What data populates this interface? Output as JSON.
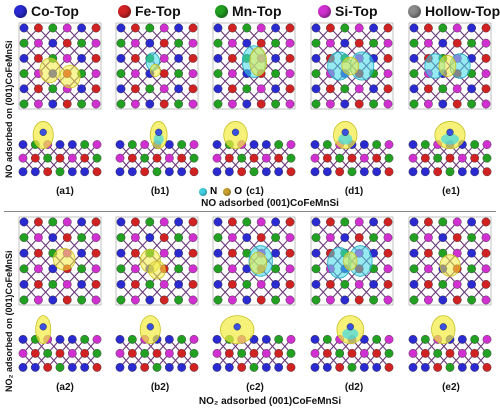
{
  "legend": [
    {
      "label": "Co-Top",
      "color": "#2a2ad0"
    },
    {
      "label": "Fe-Top",
      "color": "#d02222"
    },
    {
      "label": "Mn-Top",
      "color": "#22a022"
    },
    {
      "label": "Si-Top",
      "color": "#d030d0"
    },
    {
      "label": "Hollow-Top",
      "color": "#8a8a8a"
    }
  ],
  "section1": {
    "side_label": "NO adsorbed on (001)CoFeMnSi",
    "caption": "NO adsorbed (001)CoFeMnSi",
    "panel_labels": [
      "(a1)",
      "(b1)",
      "(c1)",
      "(d1)",
      "(e1)"
    ],
    "atom_legend": [
      {
        "label": "N",
        "color": "#40d0e0"
      },
      {
        "label": "O",
        "color": "#c8a030"
      }
    ]
  },
  "section2": {
    "side_label": "NO₂ adsorbed on (001)CoFeMnSi",
    "caption": "NO₂ adsorbed (001)CoFeMnSi",
    "panel_labels": [
      "(a2)",
      "(b2)",
      "(c2)",
      "(d2)",
      "(e2)"
    ]
  },
  "colors": {
    "co": "#2a2ad0",
    "fe": "#d02222",
    "mn": "#22a022",
    "si": "#d030d0",
    "bond": "#6a3a7a",
    "cloud": "#f2ec40",
    "cloud_cyan": "#40d8e8"
  }
}
